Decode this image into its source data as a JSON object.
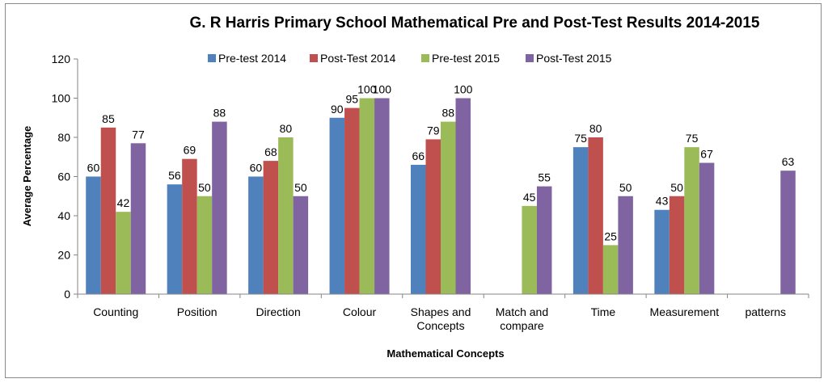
{
  "chart_data": {
    "type": "bar",
    "title": "G. R Harris Primary School Mathematical Pre and Post-Test Results 2014-2015",
    "xlabel": "Mathematical Concepts",
    "ylabel": "Average Percentage",
    "ylim": [
      0,
      120
    ],
    "yticks": [
      0,
      20,
      40,
      60,
      80,
      100,
      120
    ],
    "grid": false,
    "legend_position": "top",
    "categories": [
      [
        "Counting"
      ],
      [
        "Position"
      ],
      [
        "Direction"
      ],
      [
        "Colour"
      ],
      [
        "Shapes and",
        "Concepts"
      ],
      [
        "Match and",
        "compare"
      ],
      [
        "Time"
      ],
      [
        "Measurement"
      ],
      [
        "patterns"
      ]
    ],
    "series": [
      {
        "name": "Pre-test 2014",
        "color": "#4f81bd",
        "values": [
          60,
          56,
          60,
          90,
          66,
          null,
          75,
          43,
          null
        ]
      },
      {
        "name": "Post-Test 2014",
        "color": "#c0504d",
        "values": [
          85,
          69,
          68,
          95,
          79,
          null,
          80,
          50,
          null
        ]
      },
      {
        "name": "Pre-test 2015",
        "color": "#9bbb59",
        "values": [
          42,
          50,
          80,
          100,
          88,
          45,
          25,
          75,
          null
        ]
      },
      {
        "name": "Post-Test 2015",
        "color": "#8064a2",
        "values": [
          77,
          88,
          50,
          100,
          100,
          55,
          50,
          67,
          63
        ]
      }
    ]
  }
}
